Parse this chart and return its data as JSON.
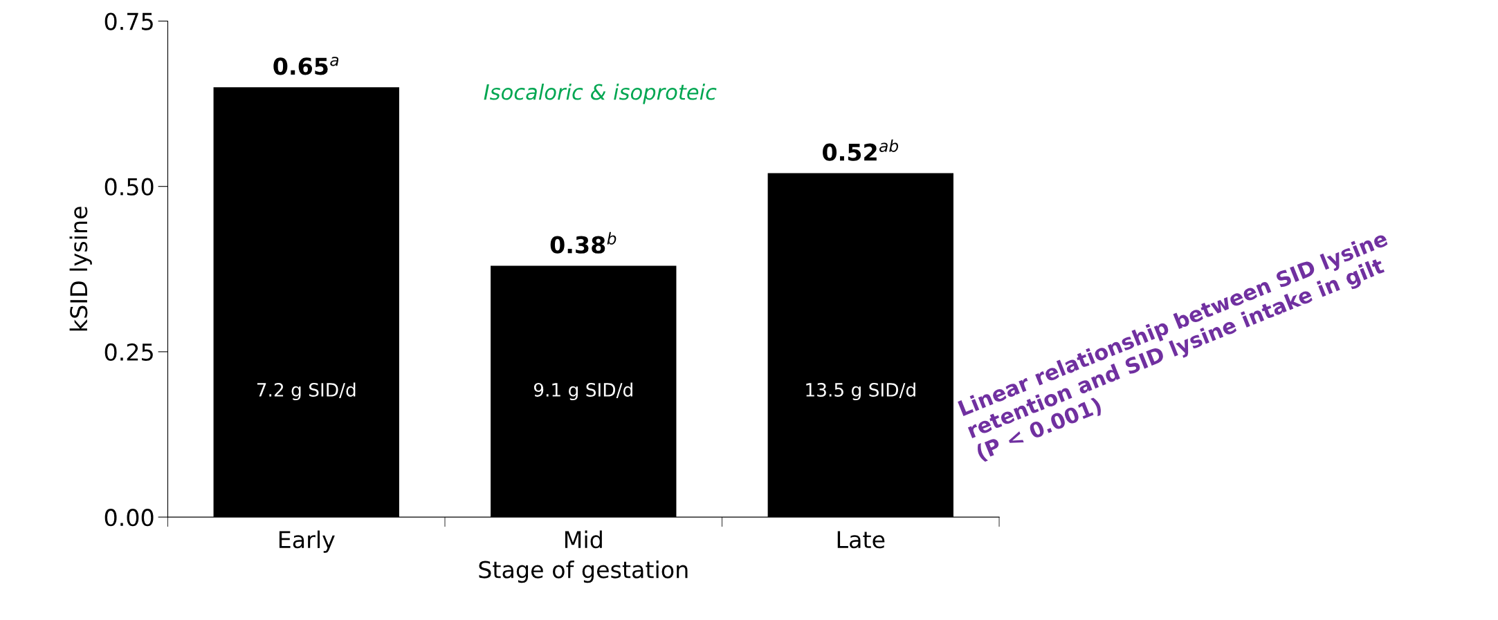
{
  "chart_data": {
    "type": "bar",
    "xlabel": "Stage of gestation",
    "ylabel": "kSID lysine",
    "categories": [
      "Early",
      "Mid",
      "Late"
    ],
    "values": [
      0.65,
      0.38,
      0.52
    ],
    "color": "#000000",
    "value_labels": [
      "0.65$^{a}$",
      "0.38$^{b}$",
      "0.52$^{ab}$"
    ],
    "ylim": [
      0,
      0.75
    ],
    "yticks": [
      {
        "value": 0,
        "label": "0.00"
      },
      0.25,
      {
        "value": 0.5,
        "label": "0.50"
      },
      0.75
    ],
    "annotations": [
      "7.2 g SID/d",
      "9.1 g SID/d",
      "13.5 g SID/d",
      "Isocaloric & isoproteic",
      "Linear relationship between SID lysine\nretention and SID lysine intake in gilt\n(P < 0.001)"
    ],
    "grid": false,
    "legend": false
  }
}
